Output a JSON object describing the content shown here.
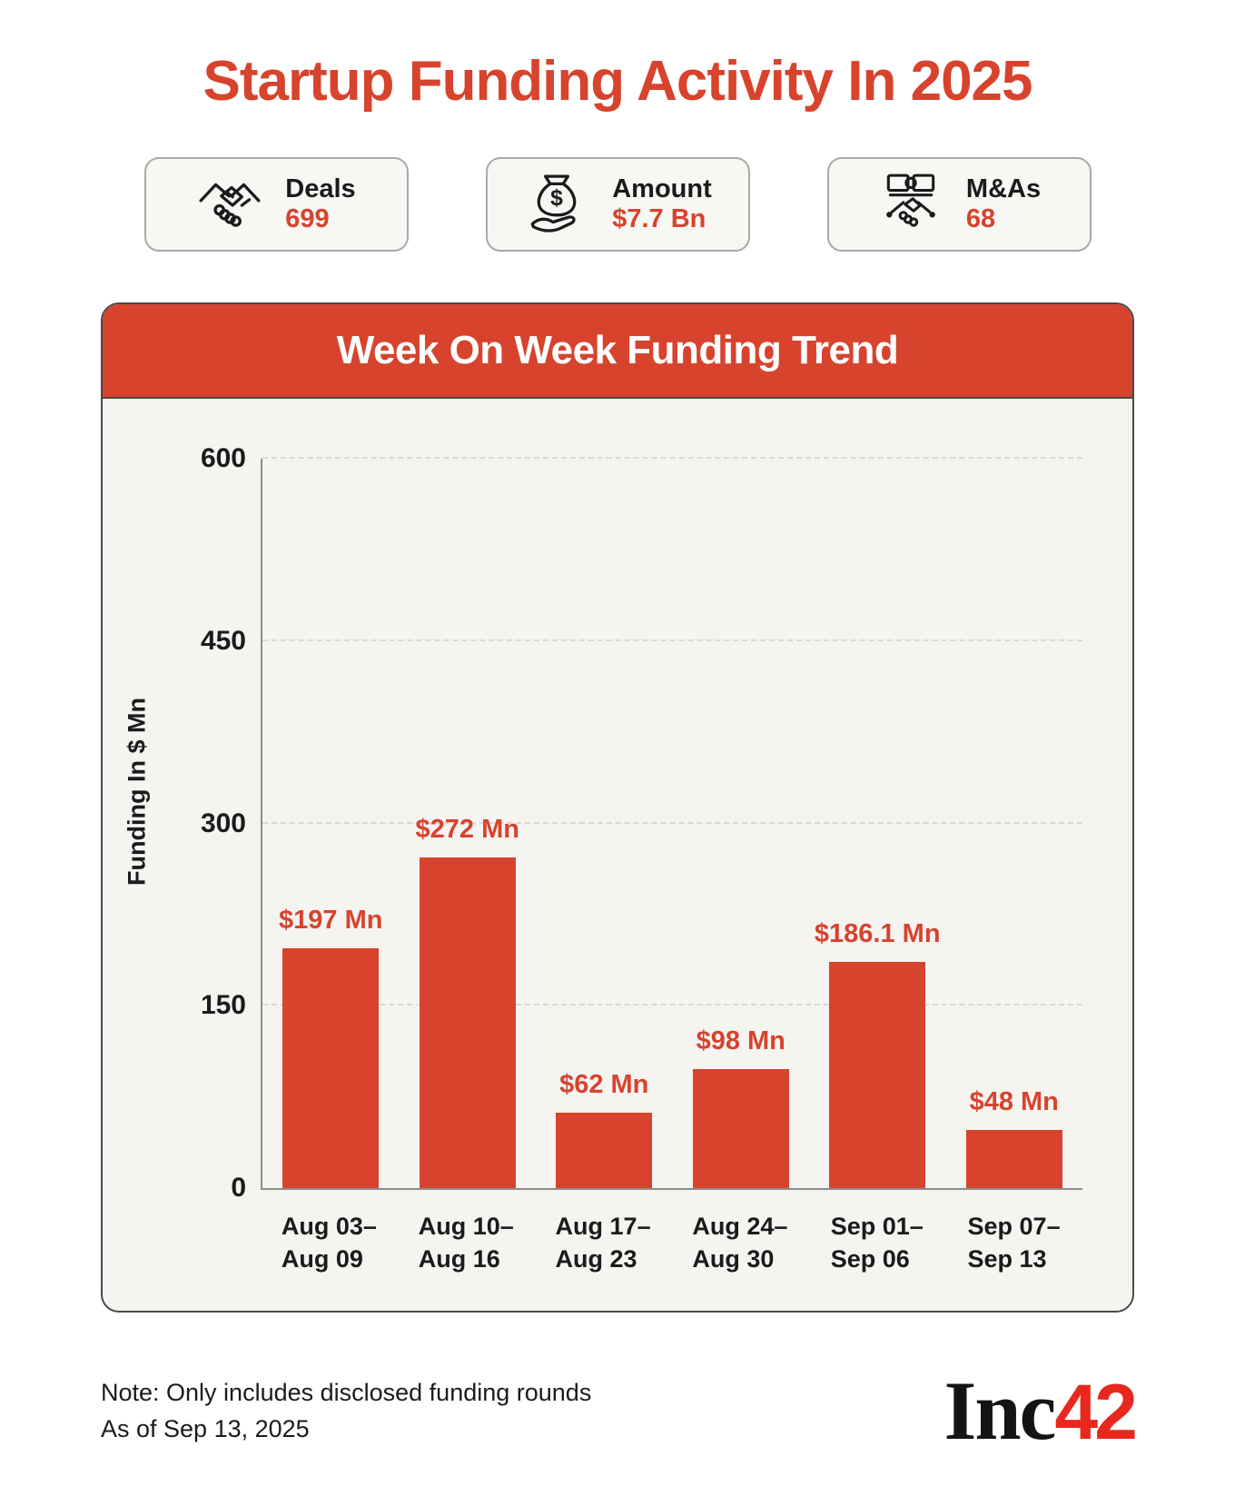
{
  "page": {
    "title": "Startup Funding Activity In 2025",
    "note_line1": "Note: Only includes disclosed funding rounds",
    "note_line2": "As of Sep 13, 2025",
    "logo": {
      "part1": "Inc",
      "part2": "42"
    }
  },
  "colors": {
    "accent": "#D7432D",
    "logo_red": "#E8281E",
    "panel_bg": "#F5F4F1",
    "card_bg": "#F7F7F4"
  },
  "stats": [
    {
      "icon": "handshake-icon",
      "label": "Deals",
      "value": "699"
    },
    {
      "icon": "money-bag-hand-icon",
      "label": "Amount",
      "value": "$7.7 Bn"
    },
    {
      "icon": "merger-puzzle-handshake-icon",
      "label": "M&As",
      "value": "68"
    }
  ],
  "chart": {
    "header": "Week On Week Funding Trend"
  },
  "chart_data": {
    "type": "bar",
    "title": "Week On Week Funding Trend",
    "categories": [
      "Aug 03–\nAug 09",
      "Aug 10–\nAug 16",
      "Aug 17–\nAug 23",
      "Aug 24–\nAug 30",
      "Sep 01–\nSep 06",
      "Sep 07–\nSep 13"
    ],
    "values": [
      197,
      272,
      62,
      98,
      186.1,
      48
    ],
    "value_labels": [
      "$197 Mn",
      "$272 Mn",
      "$62 Mn",
      "$98 Mn",
      "$186.1 Mn",
      "$48 Mn"
    ],
    "xlabel": "",
    "ylabel": "Funding In $ Mn",
    "ylim": [
      0,
      600
    ],
    "yticks": [
      0,
      150,
      300,
      450,
      600
    ],
    "grid": "horizontal-dashed",
    "legend": "none",
    "bar_color": "#D7432D"
  }
}
